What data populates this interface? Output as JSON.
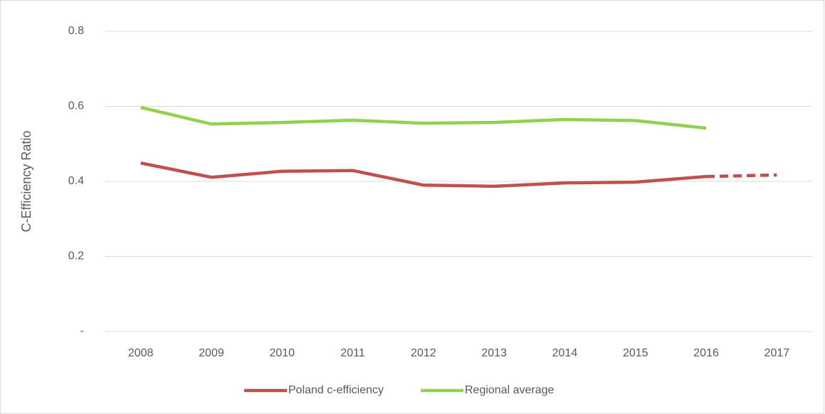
{
  "chart_data": {
    "type": "line",
    "y_label": "C-Efficiency Ratio",
    "categories": [
      "2008",
      "2009",
      "2010",
      "2011",
      "2012",
      "2013",
      "2014",
      "2015",
      "2016",
      "2017"
    ],
    "series": [
      {
        "name": "Poland c-efficiency",
        "color": "#c0504d",
        "values": [
          0.449,
          0.411,
          0.427,
          0.429,
          0.39,
          0.387,
          0.396,
          0.398,
          0.413,
          0.417
        ],
        "dashed_from": "2016"
      },
      {
        "name": "Regional average",
        "color": "#92d050",
        "values": [
          0.597,
          0.553,
          0.557,
          0.563,
          0.555,
          0.557,
          0.565,
          0.562,
          0.542,
          null
        ]
      }
    ],
    "ylim": [
      0,
      0.8
    ],
    "yticks": [
      {
        "value": 0,
        "label": "-"
      },
      0.2,
      0.4,
      0.6,
      0.8
    ],
    "grid": true,
    "legend": "bottom"
  }
}
